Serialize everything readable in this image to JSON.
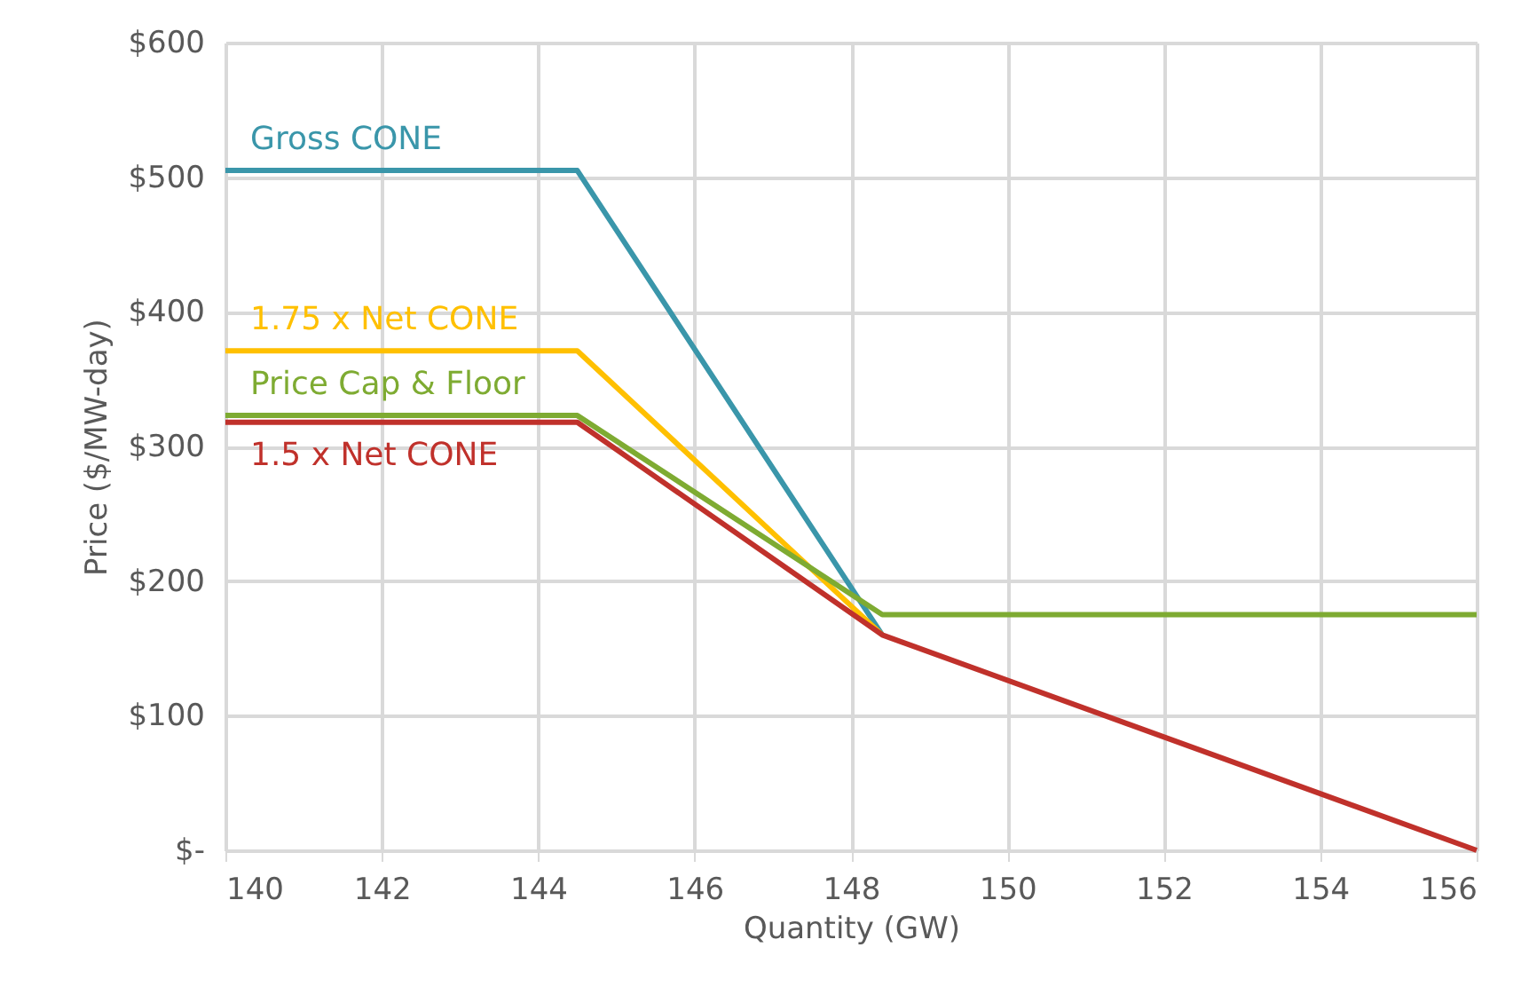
{
  "chart_data": {
    "type": "line",
    "xlabel": "Quantity (GW)",
    "ylabel": "Price ($/MW-day)",
    "xlim": [
      140,
      156
    ],
    "xticks": [
      140,
      142,
      144,
      146,
      148,
      150,
      152,
      154,
      156
    ],
    "ylim": [
      0,
      600
    ],
    "yticks": [
      {
        "value": 0,
        "label": "$-"
      },
      {
        "value": 100,
        "label": "$100"
      },
      {
        "value": 200,
        "label": "$200"
      },
      {
        "value": 300,
        "label": "$300"
      },
      {
        "value": 400,
        "label": "$400"
      },
      {
        "value": 500,
        "label": "$500"
      },
      {
        "value": 600,
        "label": "$600"
      }
    ],
    "grid": true,
    "marker": "none",
    "line_style": "solid",
    "series": [
      {
        "name": "Gross CONE",
        "color": "#3a96aa",
        "x": [
          140,
          144.5,
          148.4
        ],
        "values": [
          505,
          505,
          160
        ]
      },
      {
        "name": "1.75 x Net CONE",
        "color": "#ffc000",
        "x": [
          140,
          144.5,
          148.4
        ],
        "values": [
          371,
          371,
          160
        ]
      },
      {
        "name": "Price Cap & Floor",
        "color": "#7eab32",
        "x": [
          140,
          144.5,
          148.4,
          156
        ],
        "values": [
          323,
          323,
          175,
          175
        ]
      },
      {
        "name": "1.5 x Net CONE",
        "color": "#c0312b",
        "x": [
          140,
          144.5,
          148.4,
          156
        ],
        "values": [
          318,
          318,
          160,
          0
        ]
      }
    ]
  }
}
